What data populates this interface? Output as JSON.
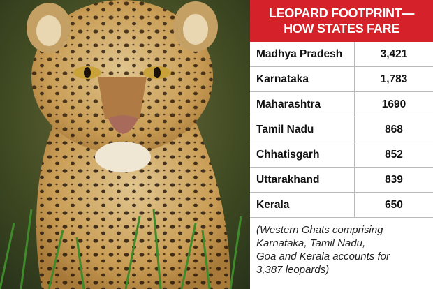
{
  "header": {
    "title_lines": [
      "LEOPARD FOOTPRINT—",
      "HOW STATES FARE"
    ]
  },
  "table": {
    "rows": [
      [
        "Madhya Pradesh",
        "3,421"
      ],
      [
        "Karnataka",
        "1,783"
      ],
      [
        "Maharashtra",
        "1690"
      ],
      [
        "Tamil Nadu",
        "868"
      ],
      [
        "Chhatisgarh",
        "852"
      ],
      [
        "Uttarakhand",
        "839"
      ],
      [
        "Kerala",
        "650"
      ]
    ]
  },
  "note": {
    "lines": [
      "(Western Ghats comprising",
      "Karnataka, Tamil Nadu,",
      "Goa and Kerala accounts for",
      "3,387 leopards)"
    ]
  }
}
